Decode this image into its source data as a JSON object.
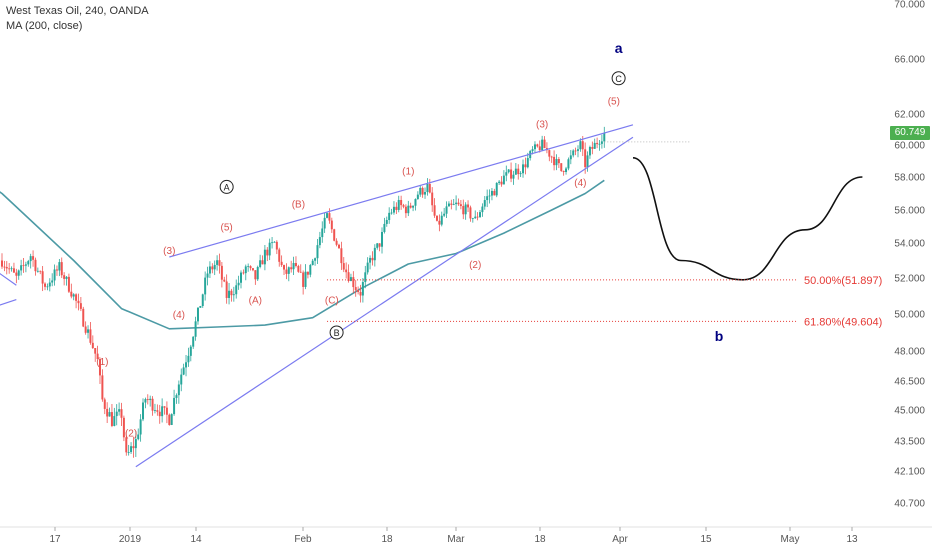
{
  "header": {
    "symbol_line": "West Texas Oil, 240, OANDA",
    "indicator_line": "MA (200, close)"
  },
  "last_price": {
    "label": "60.749",
    "value": 60.749,
    "color": "#4caf50"
  },
  "colors": {
    "up": "#26a69a",
    "down": "#ef5350",
    "ma": "#4c9aa5",
    "channel": "#7b7bf0",
    "wave_label": "#d9534f",
    "wave_major": "#000080",
    "fib": "#e53935"
  },
  "chart_data": {
    "type": "candlestick",
    "y_axis_ticks": [
      "40.700",
      "42.100",
      "43.500",
      "45.000",
      "46.500",
      "48.000",
      "50.000",
      "52.000",
      "54.000",
      "56.000",
      "58.000",
      "60.000",
      "62.000",
      "66.000",
      "70.000"
    ],
    "x_axis_ticks": [
      "17",
      "2019",
      "14",
      "Feb",
      "18",
      "Mar",
      "18",
      "Apr",
      "15",
      "May",
      "13"
    ],
    "ylim": [
      40.0,
      70.0
    ],
    "close_path": [
      [
        0,
        53.0
      ],
      [
        3,
        52.0
      ],
      [
        6,
        53.3
      ],
      [
        9,
        51.5
      ],
      [
        12,
        52.6
      ],
      [
        15,
        51.0
      ],
      [
        18,
        49.0
      ],
      [
        20,
        47.5
      ],
      [
        21,
        45.5
      ],
      [
        23,
        44.5
      ],
      [
        25,
        44.8
      ],
      [
        26,
        42.7
      ],
      [
        28,
        43.5
      ],
      [
        30,
        45.6
      ],
      [
        33,
        45.0
      ],
      [
        35,
        44.6
      ],
      [
        37,
        46.5
      ],
      [
        39,
        48.0
      ],
      [
        41,
        50.0
      ],
      [
        43,
        52.3
      ],
      [
        45,
        52.9
      ],
      [
        47,
        51.0
      ],
      [
        49,
        51.5
      ],
      [
        51,
        52.6
      ],
      [
        53,
        52.0
      ],
      [
        55,
        53.4
      ],
      [
        57,
        54.0
      ],
      [
        59,
        52.2
      ],
      [
        61,
        52.6
      ],
      [
        63,
        51.8
      ],
      [
        65,
        53.0
      ],
      [
        67,
        54.8
      ],
      [
        68,
        55.6
      ],
      [
        70,
        54.0
      ],
      [
        72,
        52.4
      ],
      [
        74,
        51.5
      ],
      [
        75,
        51.2
      ],
      [
        77,
        53.0
      ],
      [
        79,
        54.0
      ],
      [
        81,
        55.8
      ],
      [
        83,
        56.3
      ],
      [
        85,
        56.0
      ],
      [
        87,
        57.0
      ],
      [
        89,
        57.4
      ],
      [
        91,
        55.0
      ],
      [
        93,
        56.0
      ],
      [
        95,
        56.3
      ],
      [
        97,
        56.0
      ],
      [
        99,
        55.4
      ],
      [
        101,
        56.6
      ],
      [
        103,
        57.2
      ],
      [
        105,
        58.0
      ],
      [
        107,
        58.3
      ],
      [
        109,
        58.6
      ],
      [
        111,
        59.6
      ],
      [
        113,
        60.0
      ],
      [
        115,
        59.3
      ],
      [
        117,
        58.4
      ],
      [
        119,
        59.2
      ],
      [
        121,
        60.0
      ],
      [
        122,
        58.8
      ],
      [
        123,
        59.6
      ],
      [
        125,
        60.4
      ],
      [
        126,
        60.75
      ]
    ],
    "ma200_path": [
      [
        -15,
        60.0
      ],
      [
        0,
        57.0
      ],
      [
        15,
        53.0
      ],
      [
        25,
        50.3
      ],
      [
        35,
        49.2
      ],
      [
        45,
        49.3
      ],
      [
        55,
        49.4
      ],
      [
        65,
        49.8
      ],
      [
        75,
        51.4
      ],
      [
        85,
        52.8
      ],
      [
        95,
        53.4
      ],
      [
        105,
        54.6
      ],
      [
        115,
        56.0
      ],
      [
        122,
        57.0
      ],
      [
        126,
        57.8
      ]
    ],
    "channel_lines": [
      {
        "from": [
          -12,
          54.5
        ],
        "to": [
          3,
          51.6
        ]
      },
      {
        "from": [
          -12,
          49.5
        ],
        "to": [
          3,
          50.8
        ]
      },
      {
        "from": [
          28,
          42.3
        ],
        "to": [
          132,
          60.5
        ]
      },
      {
        "from": [
          35,
          53.2
        ],
        "to": [
          132,
          61.3
        ]
      }
    ],
    "projection_curve": [
      [
        132,
        59.2
      ],
      [
        142,
        53.0
      ],
      [
        155,
        51.9
      ],
      [
        168,
        54.8
      ],
      [
        180,
        58.0
      ]
    ],
    "last_price_dotted": {
      "from": 126,
      "to": 144,
      "y": 60.2
    },
    "fib_levels": [
      {
        "label": "50.00%(51.897)",
        "value": 51.897,
        "from": 68
      },
      {
        "label": "61.80%(49.604)",
        "value": 49.604,
        "from": 68
      }
    ],
    "wave_labels": [
      {
        "text": "(1)",
        "x": 21,
        "y": 47.5
      },
      {
        "text": "(2)",
        "x": 27,
        "y": 43.9
      },
      {
        "text": "(3)",
        "x": 35,
        "y": 53.6
      },
      {
        "text": "(4)",
        "x": 37,
        "y": 50.0
      },
      {
        "text": "(5)",
        "x": 47,
        "y": 55.0
      },
      {
        "text": "(A)",
        "x": 53,
        "y": 50.8
      },
      {
        "text": "(B)",
        "x": 62,
        "y": 56.4
      },
      {
        "text": "(C)",
        "x": 69,
        "y": 50.8
      },
      {
        "text": "(1)",
        "x": 85,
        "y": 58.4
      },
      {
        "text": "(2)",
        "x": 99,
        "y": 52.8
      },
      {
        "text": "(3)",
        "x": 113,
        "y": 61.4
      },
      {
        "text": "(4)",
        "x": 121,
        "y": 57.7
      },
      {
        "text": "(5)",
        "x": 128,
        "y": 63.0
      }
    ],
    "circle_labels": [
      {
        "text": "A",
        "x": 47,
        "y": 57.4
      },
      {
        "text": "B",
        "x": 70,
        "y": 49.0
      },
      {
        "text": "C",
        "x": 129,
        "y": 64.6
      }
    ],
    "major_labels": [
      {
        "text": "a",
        "x": 129,
        "y": 66.8
      },
      {
        "text": "b",
        "x": 150,
        "y": 48.8
      }
    ]
  }
}
